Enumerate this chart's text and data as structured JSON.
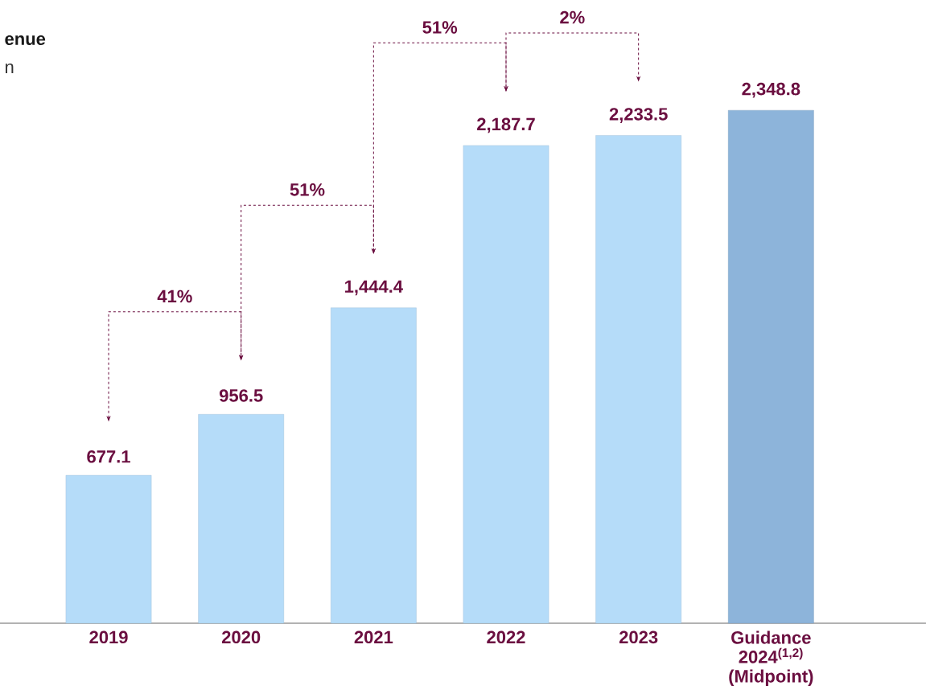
{
  "chart_data": {
    "type": "bar",
    "title": "enue",
    "subtitle": "n",
    "categories": [
      "2019",
      "2020",
      "2021",
      "2022",
      "2023",
      "Guidance 2024$^{(1,2)}$ (Midpoint)"
    ],
    "values": [
      677.1,
      956.5,
      1444.4,
      2187.7,
      2233.5,
      2348.8
    ],
    "value_labels": [
      "677.1",
      "956.5",
      "1,444.4",
      "2,187.7",
      "2,233.5",
      "2,348.8"
    ],
    "colors": [
      "#b5dcf9",
      "#b5dcf9",
      "#b5dcf9",
      "#b5dcf9",
      "#b5dcf9",
      "#8db4da"
    ],
    "annotations": [
      "41%",
      "51%",
      "51%",
      "2%"
    ]
  }
}
